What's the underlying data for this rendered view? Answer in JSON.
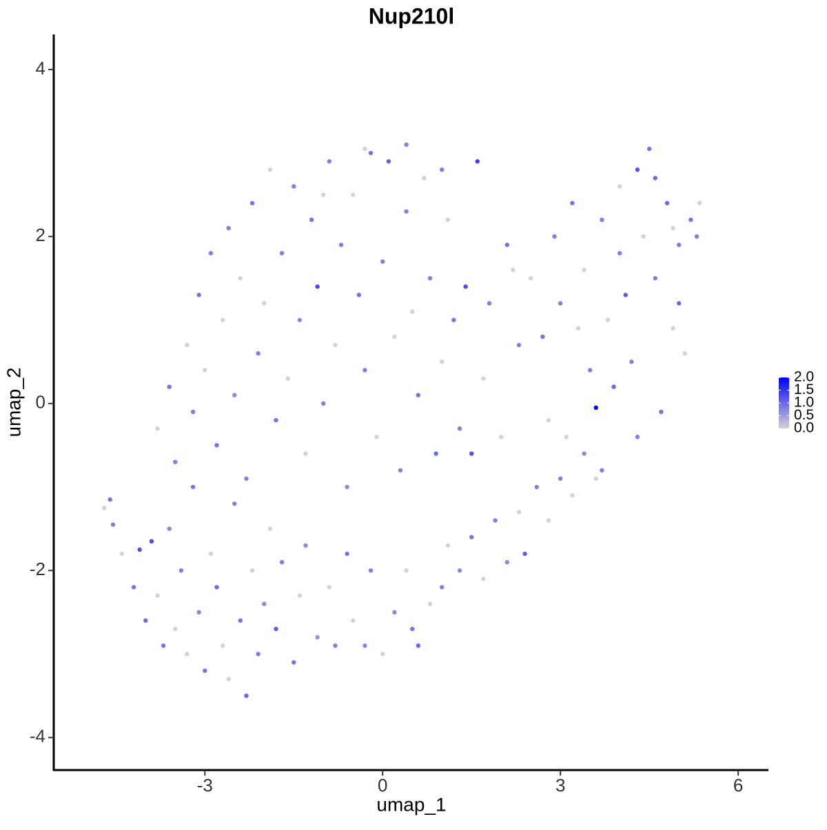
{
  "chart_data": {
    "type": "scatter",
    "title": "Nup210l",
    "xlabel": "umap_1",
    "ylabel": "umap_2",
    "xlim": [
      -5.55,
      6.51
    ],
    "ylim": [
      -4.39,
      4.42
    ],
    "xticks": [
      -3,
      0,
      3,
      6
    ],
    "yticks": [
      -4,
      -2,
      0,
      2,
      4
    ],
    "low_color": "#d3d3d3",
    "high_color": "#0000ff",
    "clim": [
      0,
      2.0
    ],
    "colorbar_ticks": [
      {
        "value": 0,
        "label": "0.0"
      },
      {
        "value": 0.5,
        "label": "0.5"
      },
      {
        "value": 1,
        "label": "1.0"
      },
      {
        "value": 1.5,
        "label": "1.5"
      },
      {
        "value": 2,
        "label": "2.0"
      }
    ],
    "x": [
      -4.7,
      -4.6,
      -4.55,
      -4.4,
      -4.2,
      -4.1,
      -4.0,
      -3.9,
      -3.8,
      -3.7,
      -3.6,
      -3.5,
      -3.4,
      -3.3,
      -3.2,
      -3.1,
      -3.0,
      -2.9,
      -2.8,
      -2.7,
      -2.6,
      -2.5,
      -2.4,
      -2.3,
      -2.2,
      -2.1,
      -2.0,
      -1.9,
      -1.8,
      -1.7,
      -1.5,
      -1.4,
      -1.3,
      -1.1,
      -0.9,
      -0.8,
      -0.6,
      -0.5,
      -0.3,
      -0.2,
      0.0,
      0.2,
      0.4,
      0.5,
      0.6,
      0.8,
      1.0,
      1.1,
      1.3,
      1.5,
      1.7,
      1.9,
      2.1,
      2.3,
      2.4,
      2.6,
      2.8,
      3.0,
      3.2,
      3.4,
      3.6,
      3.7,
      -3.8,
      -3.6,
      -3.5,
      -3.3,
      -3.2,
      -3.1,
      -3.0,
      -2.9,
      -2.8,
      -2.7,
      -2.6,
      -2.5,
      -2.4,
      -2.3,
      -2.2,
      -2.1,
      -2.0,
      -1.9,
      -1.8,
      -1.7,
      -1.6,
      -1.5,
      -1.4,
      -1.3,
      -1.2,
      -1.1,
      -1.0,
      -0.9,
      -0.8,
      -0.7,
      -0.6,
      -0.5,
      -0.4,
      -0.3,
      -0.2,
      -0.1,
      0.0,
      0.1,
      0.2,
      0.3,
      0.4,
      0.5,
      0.6,
      0.7,
      0.8,
      0.9,
      1.0,
      1.1,
      1.2,
      1.3,
      1.4,
      1.5,
      1.6,
      1.7,
      1.8,
      2.0,
      2.1,
      2.3,
      2.5,
      2.7,
      2.8,
      2.9,
      3.0,
      3.1,
      3.2,
      3.4,
      3.5,
      3.6,
      3.7,
      3.8,
      3.9,
      4.0,
      4.1,
      4.2,
      4.3,
      4.4,
      4.5,
      4.6,
      4.7,
      4.8,
      4.9,
      5.0,
      5.1,
      5.2,
      5.3,
      5.35,
      4.3,
      4.6,
      4.9,
      4.0,
      5.0,
      3.3,
      2.2,
      1.0,
      -0.3,
      0.4,
      -1.0
    ],
    "y": [
      -1.25,
      -1.15,
      -1.45,
      -1.8,
      -2.2,
      -1.75,
      -2.6,
      -1.65,
      -2.3,
      -2.9,
      -1.5,
      -2.7,
      -2.0,
      -3.0,
      -1.0,
      -2.5,
      -3.2,
      -1.8,
      -2.2,
      -2.9,
      -3.3,
      -1.2,
      -2.6,
      -3.5,
      -2.0,
      -3.0,
      -2.4,
      -1.5,
      -2.7,
      -1.9,
      -3.1,
      -2.3,
      -1.7,
      -2.8,
      -2.2,
      -2.9,
      -1.8,
      -2.6,
      -2.9,
      -2.0,
      -3.0,
      -2.5,
      -2.0,
      -2.7,
      -2.9,
      -2.4,
      -2.2,
      -1.7,
      -2.0,
      -1.6,
      -2.1,
      -1.4,
      -1.9,
      -1.3,
      -1.8,
      -1.0,
      -1.4,
      -0.9,
      -1.1,
      -0.6,
      -0.9,
      -0.8,
      -0.3,
      0.2,
      -0.7,
      0.7,
      -0.1,
      1.3,
      0.4,
      1.8,
      -0.5,
      1.0,
      2.1,
      0.1,
      1.5,
      -0.9,
      2.4,
      0.6,
      1.2,
      2.8,
      -0.2,
      1.8,
      0.3,
      2.6,
      1.0,
      -0.6,
      2.2,
      1.4,
      0.0,
      2.9,
      0.7,
      1.9,
      -1.0,
      2.5,
      1.3,
      0.4,
      3.0,
      -0.4,
      1.7,
      2.9,
      0.8,
      -0.8,
      2.3,
      1.1,
      0.1,
      2.7,
      1.5,
      -0.6,
      0.5,
      2.2,
      1.0,
      -0.3,
      1.4,
      -0.6,
      2.9,
      0.3,
      1.2,
      -0.4,
      1.9,
      0.7,
      1.5,
      0.8,
      -0.2,
      2.0,
      1.2,
      -0.4,
      2.4,
      1.6,
      0.4,
      -0.05,
      2.2,
      1.0,
      0.2,
      2.6,
      1.3,
      0.5,
      -0.4,
      2.0,
      3.05,
      1.5,
      -0.1,
      2.4,
      0.9,
      1.9,
      0.6,
      2.2,
      2.0,
      2.4,
      2.8,
      2.7,
      2.1,
      1.8,
      1.2,
      0.9,
      1.6,
      2.8,
      3.05,
      3.1,
      2.5
    ],
    "expression": [
      0,
      0.9,
      0.8,
      0,
      0.9,
      1.2,
      1.0,
      1.3,
      0,
      0.9,
      0.7,
      0,
      0.8,
      0,
      0.9,
      0.7,
      0.9,
      0,
      1.0,
      0,
      0,
      0.8,
      0.9,
      1.0,
      0,
      0.8,
      0.7,
      0,
      1.1,
      0.8,
      0.9,
      0,
      0.7,
      0.6,
      0,
      0.8,
      0.9,
      0,
      0.7,
      0.8,
      0,
      0.7,
      0,
      0.9,
      1.0,
      0,
      0.8,
      0,
      0.7,
      0.9,
      0,
      0.8,
      0.7,
      0,
      1.1,
      0.8,
      0,
      0.8,
      0,
      0.7,
      0,
      0.8,
      0,
      0.9,
      0.8,
      0,
      0.8,
      0.9,
      0,
      0.8,
      0.9,
      0,
      0.8,
      0.7,
      0,
      0.8,
      0.9,
      0.8,
      0,
      0,
      0.9,
      0.8,
      0,
      0.8,
      0.7,
      0,
      0.9,
      1.3,
      0.8,
      0.8,
      0,
      0.8,
      0.7,
      0,
      0.9,
      0.8,
      0.9,
      0,
      0.8,
      1.1,
      0,
      0.8,
      0.8,
      0,
      0.9,
      0,
      0.8,
      1.0,
      0,
      0,
      0.9,
      0.8,
      1.3,
      1.2,
      1.4,
      0,
      0.8,
      0,
      0.9,
      0.8,
      0,
      0.9,
      0,
      0.8,
      0.8,
      0,
      0.9,
      0,
      0.8,
      2.0,
      0.8,
      0,
      1.0,
      0,
      1.1,
      0.8,
      0.8,
      0,
      0.9,
      0.8,
      0.9,
      1.0,
      0,
      0.8,
      0,
      0.9,
      0.8,
      0,
      1.2,
      1.0,
      0,
      0.8,
      1.0,
      0,
      0,
      0.8,
      0,
      0.8,
      0
    ]
  }
}
